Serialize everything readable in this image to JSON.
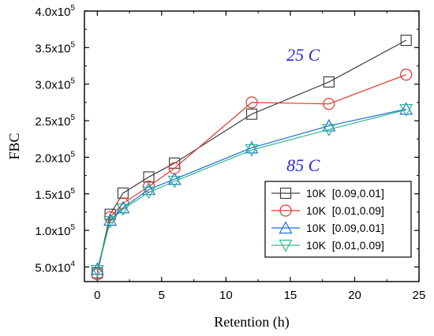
{
  "chart_data": {
    "type": "line",
    "xlabel": "Retention (h)",
    "ylabel": "FBC",
    "xlim": [
      -1,
      25
    ],
    "ylim": [
      30000,
      400000
    ],
    "x_ticks": [
      0,
      5,
      10,
      15,
      20,
      25
    ],
    "x_tick_labels": [
      "0",
      "5",
      "10",
      "15",
      "20",
      "25"
    ],
    "y_ticks": [
      50000,
      100000,
      150000,
      200000,
      250000,
      300000,
      350000,
      400000
    ],
    "y_tick_labels": [
      {
        "mant": "5.0x10",
        "exp": "4"
      },
      {
        "mant": "1.0x10",
        "exp": "5"
      },
      {
        "mant": "1.5x10",
        "exp": "5"
      },
      {
        "mant": "2.0x10",
        "exp": "5"
      },
      {
        "mant": "2.5x10",
        "exp": "5"
      },
      {
        "mant": "3.0x10",
        "exp": "5"
      },
      {
        "mant": "3.5x10",
        "exp": "5"
      },
      {
        "mant": "4.0x10",
        "exp": "5"
      }
    ],
    "grid": false,
    "legend_position": "bottom-right",
    "annotations": [
      {
        "text": "25 C",
        "x": 16,
        "y": 332000
      },
      {
        "text": "85 C",
        "x": 16,
        "y": 181000
      }
    ],
    "series": [
      {
        "name": "10K  [0.09,0.01]",
        "marker": "square",
        "color": "#404040",
        "x": [
          0,
          1,
          2,
          4,
          6,
          12,
          18,
          24
        ],
        "y": [
          42000,
          122000,
          151000,
          173000,
          192000,
          259000,
          303000,
          360000
        ]
      },
      {
        "name": "10K  [0.01,0.09]",
        "marker": "circle",
        "color": "#e0392f",
        "x": [
          0,
          1,
          2,
          4,
          6,
          12,
          18,
          24
        ],
        "y": [
          40000,
          118000,
          137000,
          160000,
          185000,
          275000,
          273000,
          313000
        ]
      },
      {
        "name": "10K  [0.09,0.01]",
        "marker": "triangle-up",
        "color": "#1e6fd9",
        "x": [
          0,
          1,
          2,
          4,
          6,
          12,
          18,
          24
        ],
        "y": [
          47000,
          114000,
          131000,
          156000,
          170000,
          213000,
          243000,
          266000
        ]
      },
      {
        "name": "10K  [0.01,0.09]",
        "marker": "triangle-down",
        "color": "#2eb88a",
        "x": [
          0,
          1,
          2,
          4,
          6,
          12,
          18,
          24
        ],
        "y": [
          45000,
          112000,
          129000,
          152000,
          167000,
          210000,
          238000,
          265000
        ]
      }
    ]
  }
}
